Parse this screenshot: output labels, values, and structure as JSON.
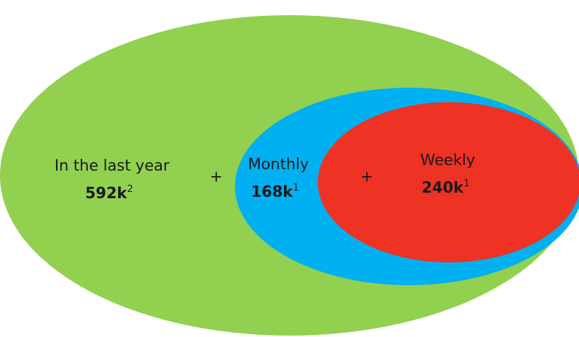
{
  "nodes": [
    {
      "label": "In the last year",
      "value": "592k",
      "footnote": "2"
    },
    {
      "label": "Monthly",
      "value": "168k",
      "footnote": "1"
    },
    {
      "label": "Weekly",
      "value": "240k",
      "footnote": "1"
    }
  ],
  "connectors": [
    "+",
    "+"
  ]
}
